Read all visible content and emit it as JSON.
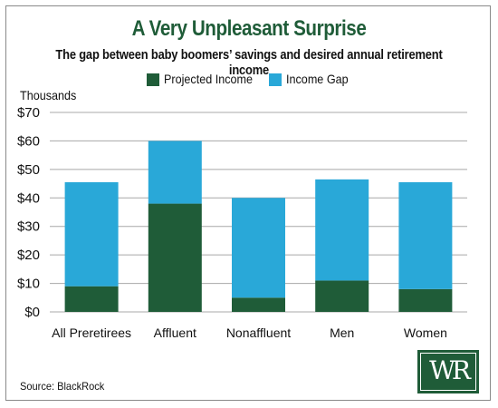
{
  "chart_data": {
    "type": "bar",
    "stacked": true,
    "title": "A Very Unpleasant Surprise",
    "subtitle": "The gap between baby boomers’ savings and desired annual retirement income",
    "unit_label": "Thousands",
    "source": "Source: BlackRock",
    "logo_text": "WR",
    "categories": [
      "All Preretirees",
      "Affluent",
      "Nonaffluent",
      "Men",
      "Women"
    ],
    "series": [
      {
        "name": "Projected Income",
        "color": "#1f5c38",
        "values": [
          9,
          38,
          5,
          11,
          8
        ]
      },
      {
        "name": "Income Gap",
        "color": "#29a8d8",
        "values": [
          36.5,
          22,
          35,
          35.5,
          37.5
        ]
      }
    ],
    "ylim": [
      0,
      70
    ],
    "yticks": [
      0,
      10,
      20,
      30,
      40,
      50,
      60,
      70
    ],
    "ytick_labels": [
      "$0",
      "$10",
      "$20",
      "$30",
      "$40",
      "$50",
      "$60",
      "$70"
    ],
    "grid": true,
    "legend_position": "top"
  }
}
